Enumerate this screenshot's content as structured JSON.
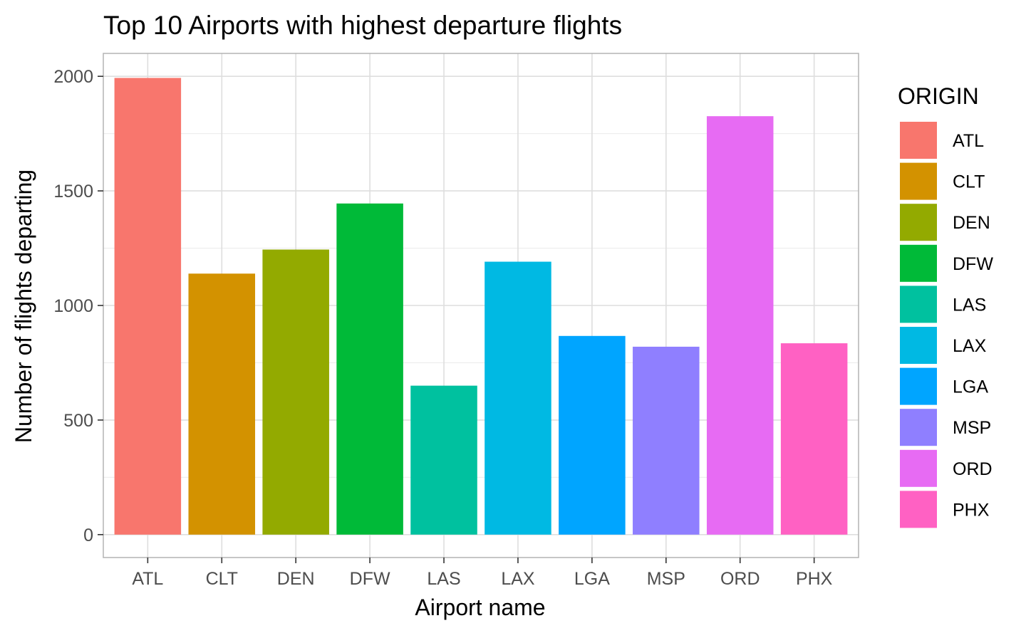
{
  "chart_data": {
    "type": "bar",
    "title": "Top 10 Airports with highest departure flights",
    "xlabel": "Airport name",
    "ylabel": "Number of flights departing",
    "categories": [
      "ATL",
      "CLT",
      "DEN",
      "DFW",
      "LAS",
      "LAX",
      "LGA",
      "MSP",
      "ORD",
      "PHX"
    ],
    "values": [
      1993,
      1139,
      1244,
      1445,
      650,
      1191,
      867,
      820,
      1826,
      835
    ],
    "colors": [
      "#F8766D",
      "#D39200",
      "#93AA00",
      "#00BA38",
      "#00C19F",
      "#00B9E3",
      "#00A5FF",
      "#8F7FFF",
      "#E76BF3",
      "#FF61C3"
    ],
    "ylim": [
      -100,
      2100
    ],
    "yticks": [
      0,
      500,
      1000,
      1500,
      2000
    ],
    "grid": true,
    "legend": {
      "title": "ORIGIN",
      "position": "right",
      "entries": [
        "ATL",
        "CLT",
        "DEN",
        "DFW",
        "LAS",
        "LAX",
        "LGA",
        "MSP",
        "ORD",
        "PHX"
      ]
    }
  }
}
